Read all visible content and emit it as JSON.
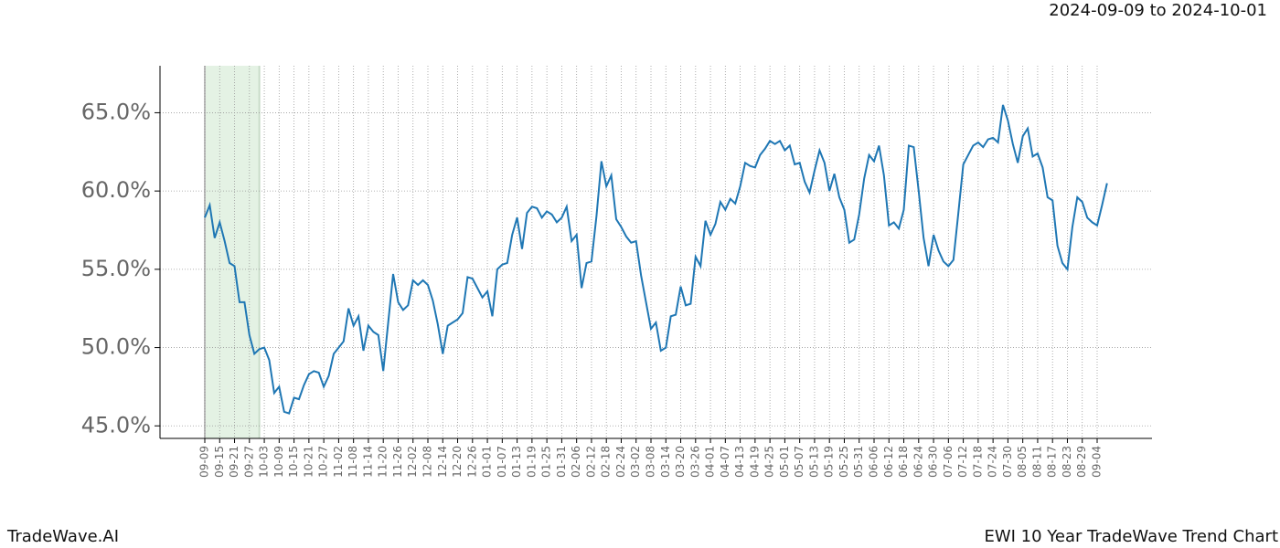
{
  "chart_data": {
    "type": "line",
    "subtitle": "2024-09-09 to 2024-10-01",
    "highlight": [
      "2024-09-09",
      "2024-10-01"
    ],
    "highlight_color": "#d9ecd9",
    "brand": "TradeWave.AI",
    "title": "EWI 10 Year TradeWave Trend Chart",
    "grid": true,
    "categories": [
      "09-09",
      null,
      null,
      "09-15",
      null,
      null,
      "09-21",
      null,
      null,
      "09-27",
      null,
      null,
      "10-03",
      null,
      null,
      "10-09",
      null,
      null,
      "10-15",
      null,
      null,
      "10-21",
      null,
      null,
      "10-27",
      null,
      null,
      "11-02",
      null,
      null,
      "11-08",
      null,
      null,
      "11-14",
      null,
      null,
      "11-20",
      null,
      null,
      "11-26",
      null,
      null,
      "12-02",
      null,
      null,
      "12-08",
      null,
      null,
      "12-14",
      null,
      null,
      "12-20",
      null,
      null,
      "12-26",
      null,
      null,
      "01-01",
      null,
      null,
      "01-07",
      null,
      null,
      "01-13",
      null,
      null,
      "01-19",
      null,
      null,
      "01-25",
      null,
      null,
      "01-31",
      null,
      null,
      "02-06",
      null,
      null,
      "02-12",
      null,
      null,
      "02-18",
      null,
      null,
      "02-24",
      null,
      null,
      "03-02",
      null,
      null,
      "03-08",
      null,
      null,
      "03-14",
      null,
      null,
      "03-20",
      null,
      null,
      "03-26",
      null,
      null,
      "04-01",
      null,
      null,
      "04-07",
      null,
      null,
      "04-13",
      null,
      null,
      "04-19",
      null,
      null,
      "04-25",
      null,
      null,
      "05-01",
      null,
      null,
      "05-07",
      null,
      null,
      "05-13",
      null,
      null,
      "05-19",
      null,
      null,
      "05-25",
      null,
      null,
      "05-31",
      null,
      null,
      "06-06",
      null,
      null,
      "06-12",
      null,
      null,
      "06-18",
      null,
      null,
      "06-24",
      null,
      null,
      "06-30",
      null,
      null,
      "07-06",
      null,
      null,
      "07-12",
      null,
      null,
      "07-18",
      null,
      null,
      "07-24",
      null,
      null,
      "07-30",
      null,
      null,
      "08-05",
      null,
      null,
      "08-11",
      null,
      null,
      "08-17",
      null,
      null,
      "08-23",
      null,
      null,
      "08-29",
      null,
      null,
      "09-04",
      null,
      null
    ],
    "series": [
      {
        "color": "#1f77b4",
        "values": [
          58.3,
          59.1,
          57.0,
          58.0,
          56.8,
          55.4,
          55.2,
          52.9,
          52.9,
          50.8,
          49.6,
          49.9,
          50.0,
          49.2,
          47.1,
          47.5,
          45.9,
          45.8,
          46.8,
          46.7,
          47.6,
          48.3,
          48.5,
          48.4,
          47.5,
          48.2,
          49.6,
          50.0,
          50.4,
          52.5,
          51.4,
          52.0,
          49.8,
          51.4,
          51.0,
          50.8,
          48.5,
          51.6,
          54.7,
          52.9,
          52.4,
          52.7,
          54.3,
          54.0,
          54.3,
          54.0,
          53.0,
          51.5,
          49.6,
          51.4,
          51.6,
          51.8,
          52.2,
          54.5,
          54.4,
          53.8,
          53.2,
          53.6,
          52.0,
          55.0,
          55.3,
          55.4,
          57.2,
          58.3,
          56.3,
          58.6,
          59.0,
          58.9,
          58.3,
          58.7,
          58.5,
          58.0,
          58.3,
          59.0,
          56.8,
          57.2,
          53.8,
          55.4,
          55.5,
          58.4,
          61.9,
          60.3,
          61.0,
          58.2,
          57.7,
          57.1,
          56.7,
          56.8,
          54.6,
          52.9,
          51.2,
          51.6,
          49.8,
          50.0,
          52.0,
          52.1,
          53.9,
          52.7,
          52.8,
          55.8,
          55.2,
          58.1,
          57.2,
          57.9,
          59.3,
          58.8,
          59.5,
          59.2,
          60.3,
          61.8,
          61.6,
          61.5,
          62.3,
          62.7,
          63.2,
          63.0,
          63.2,
          62.6,
          62.9,
          61.7,
          61.8,
          60.6,
          59.9,
          61.3,
          62.6,
          61.8,
          60.0,
          61.1,
          59.6,
          58.8,
          56.7,
          56.9,
          58.5,
          60.8,
          62.3,
          61.9,
          62.9,
          61.0,
          57.8,
          58.0,
          57.6,
          58.8,
          62.9,
          62.8,
          60.0,
          57.0,
          55.2,
          57.2,
          56.2,
          55.5,
          55.2,
          55.6,
          58.6,
          61.7,
          62.3,
          62.9,
          63.1,
          62.8,
          63.3,
          63.4,
          63.1,
          65.5,
          64.5,
          63.0,
          61.8,
          63.5,
          64.0,
          62.2,
          62.4,
          61.5,
          59.6,
          59.4,
          56.5,
          55.4,
          55.0,
          57.7,
          59.6,
          59.3,
          58.3,
          58.0,
          57.8,
          59.1,
          60.5
        ]
      }
    ],
    "ylim": [
      44.2,
      68.0
    ],
    "yticks": [
      {
        "value": 45,
        "label": "45.0%"
      },
      {
        "value": 50,
        "label": "50.0%"
      },
      {
        "value": 55,
        "label": "55.0%"
      },
      {
        "value": 60,
        "label": "60.0%"
      },
      {
        "value": 65,
        "label": "65.0%"
      }
    ]
  }
}
